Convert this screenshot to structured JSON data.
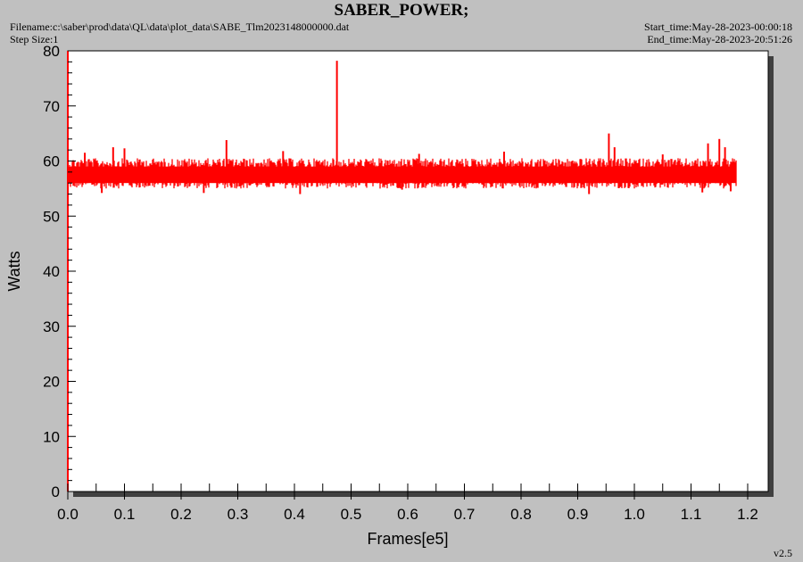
{
  "header": {
    "title": "SABER_POWER;",
    "filename": "Filename:c:\\saber\\prod\\data\\QL\\data\\plot_data\\SABE_Tlm2023148000000.dat",
    "step_size": "Step Size:1",
    "start_time": "Start_time:May-28-2023-00:00:18",
    "end_time": "End_time:May-28-2023-20:51:26",
    "version": "v2.5"
  },
  "colors": {
    "background": "#c0c0c0",
    "plot_area": "#ffffff",
    "series": "#ff0000",
    "axis": "#000000",
    "y_axis_line": "#ff0000"
  },
  "chart_data": {
    "type": "line",
    "title": "SABER_POWER;",
    "xlabel": "Frames[e5]",
    "ylabel": "Watts",
    "xlim": [
      0,
      1.2
    ],
    "ylim": [
      0,
      80
    ],
    "x_ticks": [
      "0.0",
      "0.1",
      "0.2",
      "0.3",
      "0.4",
      "0.5",
      "0.6",
      "0.7",
      "0.8",
      "0.9",
      "1.0",
      "1.1",
      "1.2"
    ],
    "y_ticks": [
      "0",
      "10",
      "20",
      "30",
      "40",
      "50",
      "60",
      "70",
      "80"
    ],
    "grid": false,
    "series": [
      {
        "x_range": [
          0.0,
          1.18
        ],
        "baseline": 57.5,
        "band_low": 55,
        "band_high": 60.5,
        "spikes": [
          {
            "x": 0.03,
            "y": 61.5
          },
          {
            "x": 0.08,
            "y": 62.5
          },
          {
            "x": 0.1,
            "y": 62.3
          },
          {
            "x": 0.28,
            "y": 63.8
          },
          {
            "x": 0.38,
            "y": 61.8
          },
          {
            "x": 0.475,
            "y": 78.2
          },
          {
            "x": 0.62,
            "y": 61.3
          },
          {
            "x": 0.77,
            "y": 61.7
          },
          {
            "x": 0.955,
            "y": 65
          },
          {
            "x": 0.965,
            "y": 62.5
          },
          {
            "x": 1.05,
            "y": 61.2
          },
          {
            "x": 1.13,
            "y": 63.2
          },
          {
            "x": 1.15,
            "y": 64
          },
          {
            "x": 1.16,
            "y": 62.5
          }
        ],
        "dips": [
          {
            "x": 0.01,
            "y": 55.5
          },
          {
            "x": 0.06,
            "y": 54.2
          },
          {
            "x": 0.24,
            "y": 54.2
          },
          {
            "x": 0.41,
            "y": 54
          },
          {
            "x": 0.59,
            "y": 54.8
          },
          {
            "x": 0.92,
            "y": 54
          },
          {
            "x": 1.12,
            "y": 54.3
          },
          {
            "x": 1.17,
            "y": 54.5
          }
        ]
      }
    ]
  }
}
